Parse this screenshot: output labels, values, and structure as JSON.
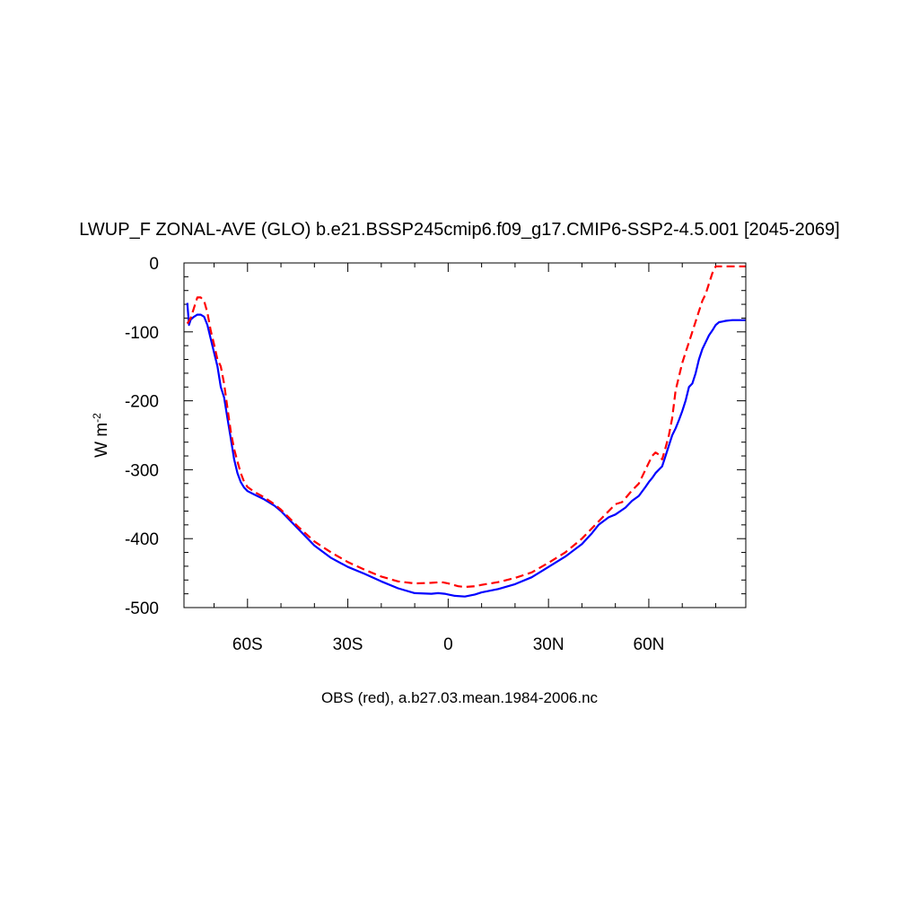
{
  "chart_data": {
    "type": "line",
    "title": "LWUP_F ZONAL-AVE (GLO) b.e21.BSSP245cmip6.f09_g17.CMIP6-SSP2-4.5.001 [2045-2069]",
    "ylabel_base": "W m",
    "ylabel_sup": "-2",
    "caption": "OBS (red), a.b27.03.mean.1984-2006.nc",
    "xlim": [
      -79,
      89
    ],
    "ylim": [
      -500,
      0
    ],
    "x_ticks": [
      {
        "value": -60,
        "label": "60S"
      },
      {
        "value": -30,
        "label": "30S"
      },
      {
        "value": 0,
        "label": "0"
      },
      {
        "value": 30,
        "label": "30N"
      },
      {
        "value": 60,
        "label": "60N"
      }
    ],
    "y_ticks": [
      {
        "value": 0,
        "label": "0"
      },
      {
        "value": -100,
        "label": "-100"
      },
      {
        "value": -200,
        "label": "-200"
      },
      {
        "value": -300,
        "label": "-300"
      },
      {
        "value": -400,
        "label": "-400"
      },
      {
        "value": -500,
        "label": "-500"
      }
    ],
    "grid": false,
    "series": [
      {
        "color": "#0000ff",
        "style": "solid",
        "x": [
          -78,
          -77.5,
          -77,
          -76,
          -75,
          -74,
          -73,
          -72,
          -71,
          -70,
          -69,
          -68,
          -67,
          -66,
          -65,
          -64,
          -63,
          -62,
          -61,
          -60,
          -58,
          -55,
          -52,
          -50,
          -45,
          -40,
          -35,
          -30,
          -25,
          -20,
          -15,
          -10,
          -5,
          -3,
          -1,
          0,
          2,
          5,
          8,
          10,
          15,
          20,
          25,
          30,
          35,
          40,
          43,
          45,
          48,
          50,
          53,
          55,
          57,
          59,
          60,
          61,
          62,
          63,
          64,
          65,
          66,
          67,
          68,
          69,
          70,
          71,
          72,
          73,
          74,
          75,
          76,
          77,
          78,
          79,
          80,
          81,
          82,
          83,
          85,
          87,
          89
        ],
        "y": [
          -58,
          -90,
          -82,
          -78,
          -75,
          -75,
          -78,
          -90,
          -110,
          -130,
          -150,
          -180,
          -195,
          -225,
          -255,
          -285,
          -305,
          -318,
          -326,
          -331,
          -336,
          -343,
          -352,
          -360,
          -385,
          -410,
          -428,
          -441,
          -451,
          -462,
          -472,
          -479,
          -480,
          -479,
          -480,
          -481,
          -483,
          -484,
          -481,
          -478,
          -473,
          -466,
          -456,
          -441,
          -426,
          -408,
          -392,
          -380,
          -369,
          -365,
          -355,
          -345,
          -338,
          -325,
          -318,
          -312,
          -305,
          -300,
          -295,
          -280,
          -265,
          -250,
          -240,
          -228,
          -215,
          -200,
          -180,
          -175,
          -160,
          -140,
          -125,
          -115,
          -105,
          -98,
          -90,
          -86,
          -85,
          -84,
          -83,
          -83,
          -83
        ]
      },
      {
        "color": "#ff0000",
        "style": "dashed",
        "x": [
          -78,
          -77,
          -76,
          -75,
          -74,
          -73,
          -72,
          -71,
          -70,
          -69,
          -68,
          -67,
          -66,
          -65,
          -64,
          -63,
          -62,
          -61,
          -60,
          -58,
          -55,
          -52,
          -50,
          -45,
          -40,
          -35,
          -30,
          -25,
          -20,
          -15,
          -10,
          -5,
          -2,
          0,
          3,
          5,
          8,
          10,
          15,
          20,
          25,
          30,
          35,
          40,
          45,
          50,
          52,
          55,
          57,
          59,
          60,
          61,
          62,
          63,
          64,
          65,
          66,
          67,
          68,
          69,
          70,
          71,
          72,
          73,
          74,
          75,
          76,
          77,
          78,
          79,
          80,
          81,
          82,
          83,
          84,
          85,
          87,
          89
        ],
        "y": [
          -88,
          -80,
          -65,
          -50,
          -50,
          -55,
          -72,
          -98,
          -118,
          -140,
          -150,
          -175,
          -210,
          -245,
          -270,
          -288,
          -305,
          -318,
          -325,
          -332,
          -340,
          -350,
          -358,
          -382,
          -404,
          -420,
          -434,
          -445,
          -455,
          -462,
          -465,
          -464,
          -463,
          -465,
          -469,
          -470,
          -469,
          -467,
          -463,
          -457,
          -449,
          -435,
          -420,
          -400,
          -375,
          -350,
          -347,
          -330,
          -320,
          -300,
          -290,
          -280,
          -275,
          -278,
          -285,
          -268,
          -250,
          -225,
          -185,
          -165,
          -145,
          -130,
          -115,
          -100,
          -85,
          -70,
          -55,
          -45,
          -30,
          -15,
          -5,
          -5,
          -5,
          -5,
          -5,
          -5,
          -5,
          -5
        ]
      }
    ]
  }
}
